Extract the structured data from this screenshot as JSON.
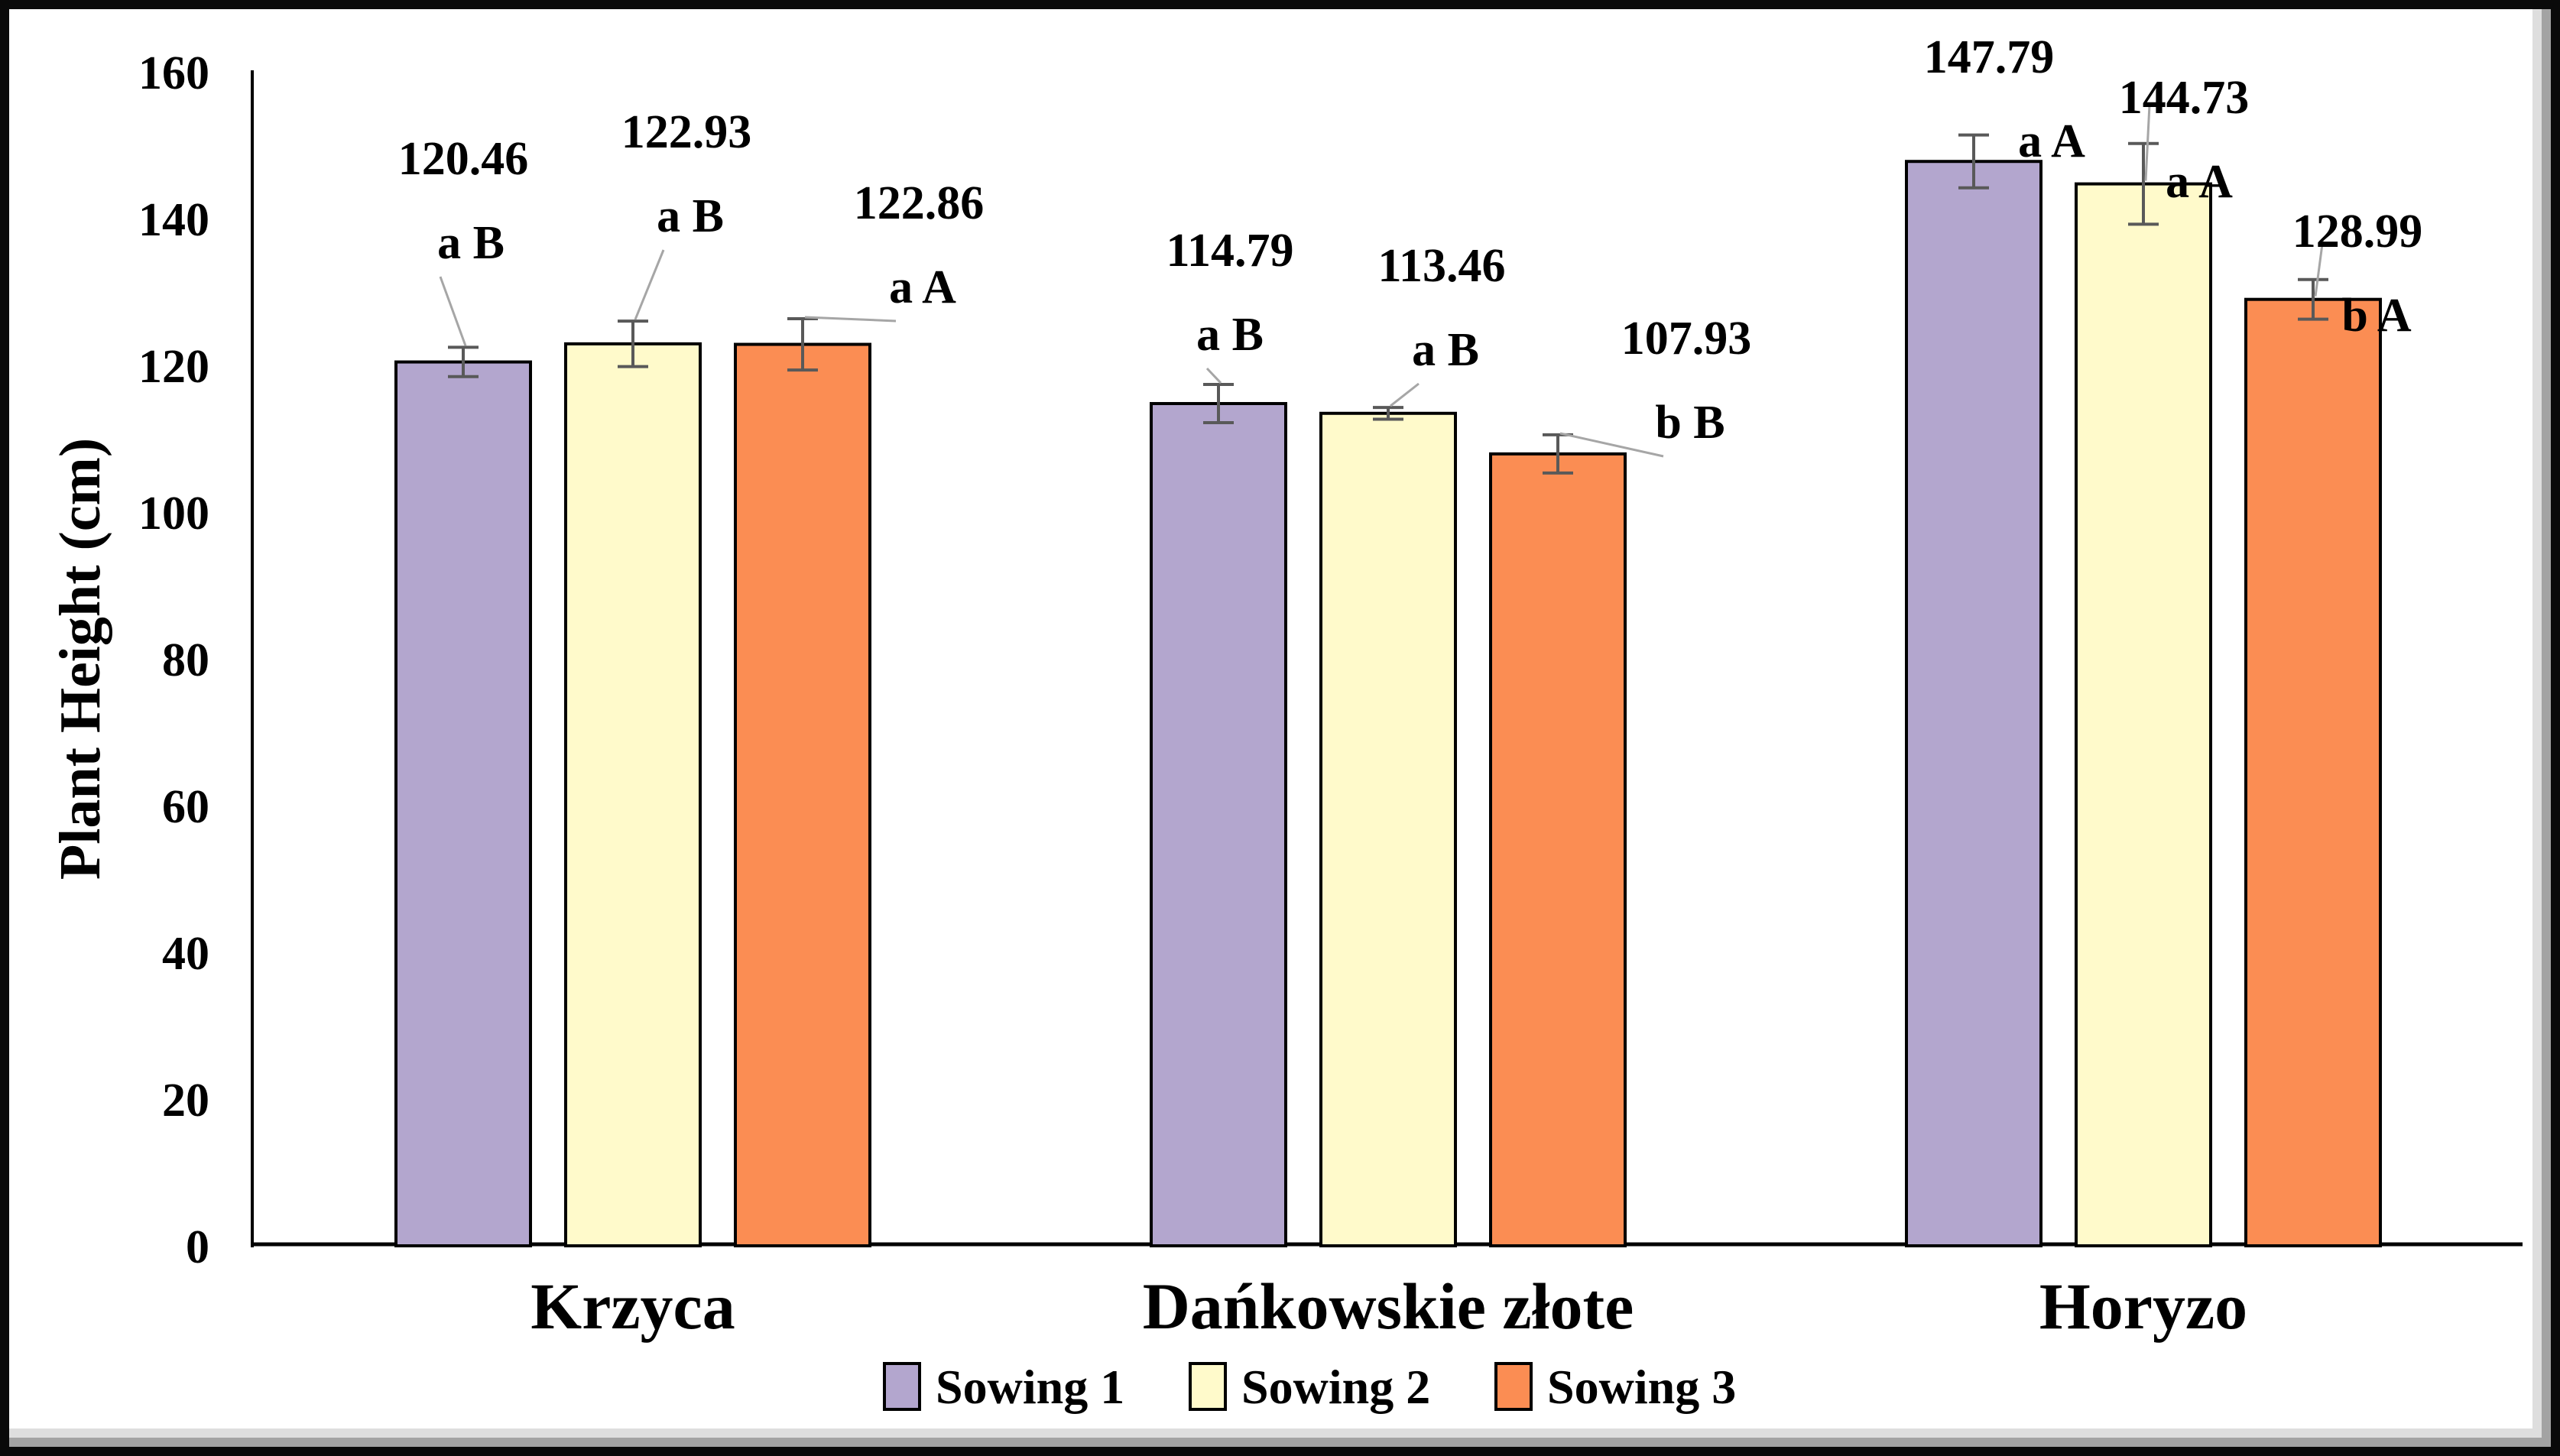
{
  "chart_data": {
    "type": "bar",
    "title": "",
    "ylabel": "Plant Height (cm)",
    "xlabel": "",
    "ylim": [
      0,
      160
    ],
    "yticks": [
      0,
      20,
      40,
      60,
      80,
      100,
      120,
      140,
      160
    ],
    "grid": false,
    "legend_position": "bottom-center",
    "categories": [
      "Krzyca",
      "Dańkowskie złote",
      "Horyzo"
    ],
    "series": [
      {
        "name": "Sowing 1",
        "color": "#B3A6CE",
        "values": [
          120.46,
          114.79,
          147.79
        ],
        "errors": [
          2.0,
          2.6,
          3.6
        ],
        "sig_letters": [
          "a B",
          "a B",
          "a A"
        ]
      },
      {
        "name": "Sowing 2",
        "color": "#FFFACB",
        "values": [
          122.93,
          113.46,
          144.73
        ],
        "errors": [
          3.1,
          0.8,
          5.5
        ],
        "sig_letters": [
          "a B",
          "a B",
          "a A"
        ]
      },
      {
        "name": "Sowing 3",
        "color": "#FB8D53",
        "values": [
          122.86,
          107.93,
          128.99
        ],
        "errors": [
          3.5,
          2.6,
          2.7
        ],
        "sig_letters": [
          "a A",
          "b B",
          "b A"
        ]
      }
    ],
    "value_label_decimals": 2
  },
  "colors": {
    "bar_border": "#000000",
    "error_bar": "#595959",
    "leader_line": "#A6A6A6",
    "axis": "#000000",
    "text": "#000000",
    "frame": "#0a0a0a"
  }
}
